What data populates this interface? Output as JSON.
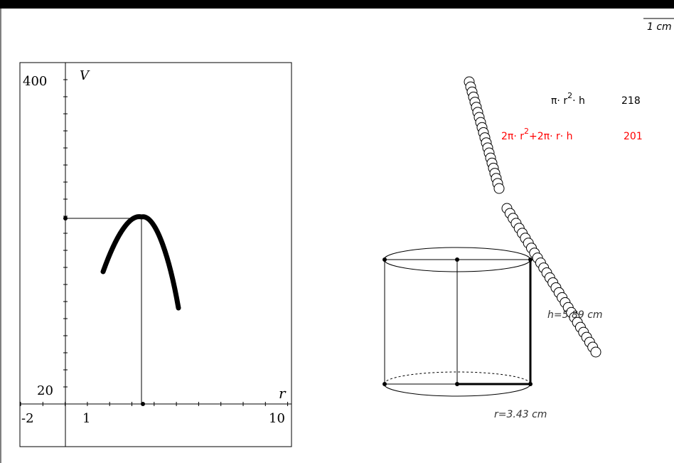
{
  "scale": "1 cm",
  "graph": {
    "y_max_label": "400",
    "y_axis_label": "V",
    "y_min_label": "20",
    "x_axis_label": "r",
    "x_min_label": "-2",
    "x_tick_label": "1",
    "x_max_label": "10"
  },
  "volume": {
    "formula": [
      "π· r",
      "2",
      "· h"
    ],
    "value": "218"
  },
  "surface": {
    "formula": [
      "2π· r",
      "2",
      "+2π· r· h"
    ],
    "value": "201"
  },
  "height_label": "h=5.89 cm",
  "radius_label": "r=3.43 cm"
}
